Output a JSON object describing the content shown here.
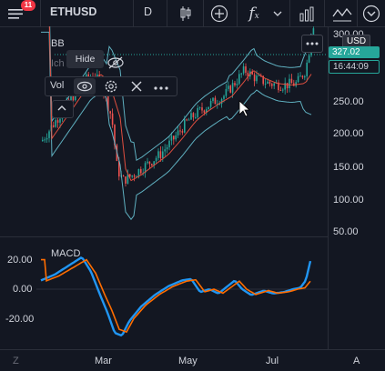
{
  "toolbar": {
    "menu_badge": "11",
    "symbol": "ETHUSD",
    "interval": "D"
  },
  "chart": {
    "indicator_title": "BB",
    "hidden_indicator_label": "Ich",
    "tooltip_hide": "Hide",
    "vol_label": "Vol",
    "currency_tag": "USD",
    "price_tag": "327.02",
    "time_tag": "16:44:09",
    "price_axis": [
      "300.00",
      "250.00",
      "200.00",
      "150.00",
      "100.00",
      "50.00"
    ],
    "macd_label": "MACD",
    "macd_axis": [
      "20.00",
      "0.00",
      "-20.00"
    ],
    "time_axis": [
      "Mar",
      "May",
      "Jul"
    ],
    "bottom_left": "Z",
    "bottom_right": "A"
  },
  "colors": {
    "background": "#131722",
    "band": "#5fb0c0",
    "basis": "#e04e3f",
    "bull": "#26a69a",
    "bear": "#ef5350",
    "macd_line": "#2196f3",
    "signal_line": "#ff6d00",
    "price_tag_bg": "#26a69a",
    "time_tag_bg": "#131722"
  },
  "icons": [
    "menu-icon",
    "candles-icon",
    "add-icon",
    "fx-icon",
    "chevron-down-icon",
    "bar-chart-icon",
    "compare-icon",
    "arrow-down-circle-icon",
    "eye-icon",
    "eye-slash-icon",
    "settings-icon",
    "close-icon",
    "more-icon",
    "chevron-up-icon",
    "cursor-icon"
  ]
}
